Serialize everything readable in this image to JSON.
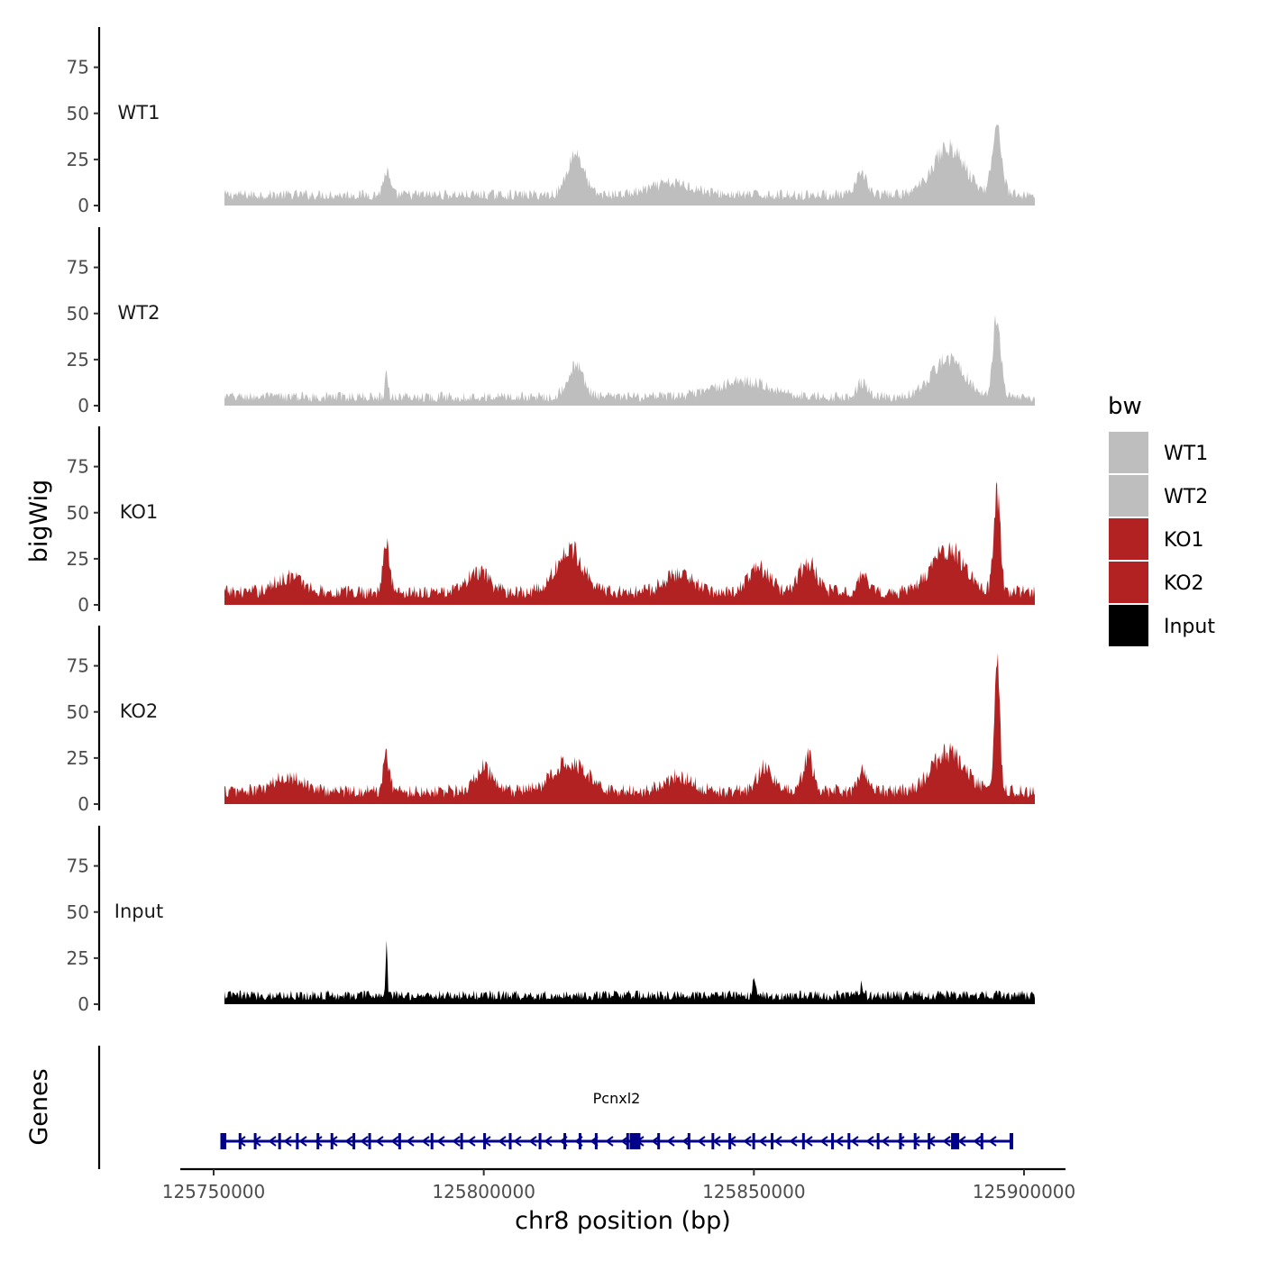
{
  "chart_data": {
    "type": "area",
    "xlabel": "chr8 position (bp)",
    "ylabel": "bigWig",
    "genes_label": "Genes",
    "xlim": [
      125750000,
      125900000
    ],
    "x_ticks": [
      {
        "value": 125750000,
        "label": "125750000"
      },
      {
        "value": 125800000,
        "label": "125800000"
      },
      {
        "value": 125850000,
        "label": "125850000"
      },
      {
        "value": 125900000,
        "label": "125900000"
      }
    ],
    "ylim": [
      0,
      95
    ],
    "y_ticks": [
      {
        "value": 0,
        "label": "0"
      },
      {
        "value": 25,
        "label": "25"
      },
      {
        "value": 50,
        "label": "50"
      },
      {
        "value": 75,
        "label": "75"
      }
    ],
    "data_start": 125752000,
    "data_end": 125902000,
    "tracks": [
      {
        "name": "WT1",
        "color": "#bebebe",
        "baseline": 5,
        "noise": 4,
        "bumps": [
          [
            125782000,
            12,
            600
          ],
          [
            125817000,
            22,
            1500
          ],
          [
            125835000,
            6,
            4000
          ],
          [
            125870000,
            12,
            900
          ],
          [
            125886000,
            25,
            3000
          ],
          [
            125895000,
            35,
            900
          ]
        ]
      },
      {
        "name": "WT2",
        "color": "#bebebe",
        "baseline": 4,
        "noise": 4,
        "bumps": [
          [
            125782000,
            12,
            300
          ],
          [
            125817000,
            16,
            1500
          ],
          [
            125848000,
            8,
            5000
          ],
          [
            125870000,
            8,
            900
          ],
          [
            125886000,
            20,
            3000
          ],
          [
            125895000,
            42,
            700
          ]
        ]
      },
      {
        "name": "KO1",
        "color": "#b22222",
        "baseline": 6,
        "noise": 5,
        "bumps": [
          [
            125764000,
            8,
            2500
          ],
          [
            125782000,
            25,
            600
          ],
          [
            125799000,
            10,
            2000
          ],
          [
            125816000,
            22,
            2500
          ],
          [
            125836000,
            10,
            2500
          ],
          [
            125851000,
            12,
            2000
          ],
          [
            125860000,
            16,
            1500
          ],
          [
            125870000,
            10,
            800
          ],
          [
            125886000,
            22,
            3000
          ],
          [
            125895000,
            52,
            600
          ]
        ]
      },
      {
        "name": "KO2",
        "color": "#b22222",
        "baseline": 6,
        "noise": 5,
        "bumps": [
          [
            125764000,
            8,
            2500
          ],
          [
            125782000,
            18,
            600
          ],
          [
            125800000,
            12,
            1500
          ],
          [
            125816000,
            16,
            3000
          ],
          [
            125836000,
            8,
            2500
          ],
          [
            125852000,
            12,
            1500
          ],
          [
            125860000,
            18,
            900
          ],
          [
            125870000,
            10,
            800
          ],
          [
            125886000,
            20,
            3000
          ],
          [
            125895000,
            70,
            500
          ]
        ]
      },
      {
        "name": "Input",
        "color": "#000000",
        "baseline": 4,
        "noise": 4,
        "bumps": [
          [
            125782000,
            30,
            150
          ],
          [
            125850000,
            6,
            300
          ],
          [
            125870000,
            6,
            300
          ]
        ]
      }
    ],
    "genes": [
      {
        "name": "Pcnxl2",
        "start": 125751500,
        "end": 125898000,
        "strand": "-",
        "color": "#00008b",
        "thick_blocks": [
          [
            125827000,
            125829000
          ],
          [
            125886500,
            125888000
          ]
        ]
      }
    ],
    "legend": {
      "title": "bw",
      "items": [
        {
          "label": "WT1",
          "color": "#bebebe"
        },
        {
          "label": "WT2",
          "color": "#bebebe"
        },
        {
          "label": "KO1",
          "color": "#b22222"
        },
        {
          "label": "KO2",
          "color": "#b22222"
        },
        {
          "label": "Input",
          "color": "#000000"
        }
      ]
    }
  }
}
